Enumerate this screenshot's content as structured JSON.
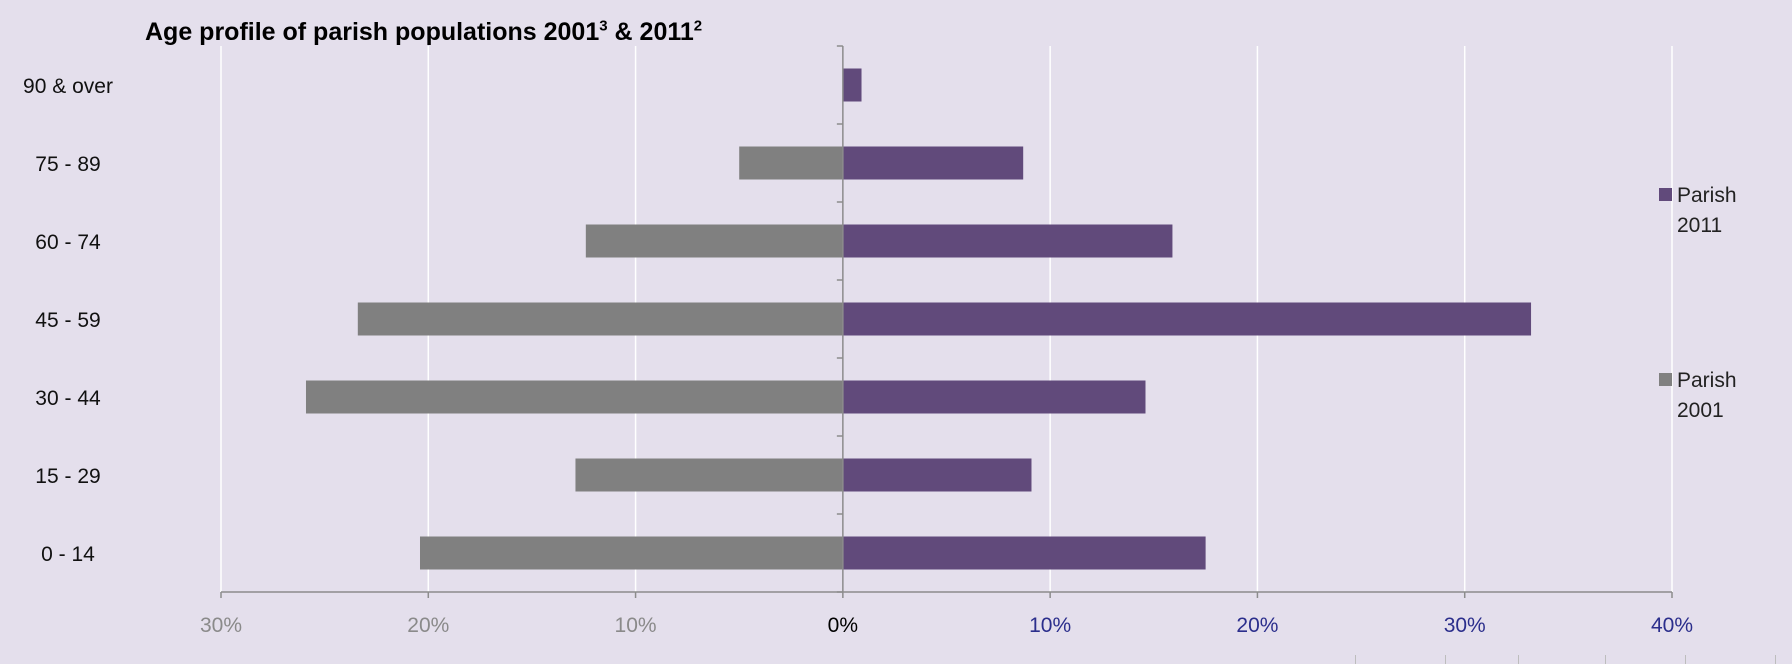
{
  "title": {
    "main": "Age profile of parish populations 2001",
    "sup1": "3",
    "mid": " & 2011",
    "sup2": "2"
  },
  "colors": {
    "background": "#e4dfec",
    "parish_2011": "#614a7b",
    "parish_2001": "#808080",
    "negative_tick_text": "#8a8a8a",
    "positive_tick_text": "#2b2e8c",
    "gridline": "#ffffff",
    "axis": "#8c8c8c"
  },
  "chart_data": {
    "type": "bar",
    "orientation": "horizontal",
    "layout": "population-pyramid",
    "title": "Age profile of parish populations 2001³ & 2011²",
    "categories": [
      "0 - 14",
      "15 - 29",
      "30 - 44",
      "45 - 59",
      "60 - 74",
      "75 - 89",
      "90 & over"
    ],
    "series": [
      {
        "name": "Parish 2011",
        "color": "#614a7b",
        "values": [
          17.5,
          9.1,
          14.6,
          33.2,
          15.9,
          8.7,
          0.9
        ]
      },
      {
        "name": "Parish 2001",
        "color": "#808080",
        "values": [
          -20.4,
          -12.9,
          -25.9,
          -23.4,
          -12.4,
          -5.0,
          0
        ]
      }
    ],
    "xlim": [
      -30,
      40
    ],
    "xticks": [
      "30%",
      "20%",
      "10%",
      "0%",
      "10%",
      "20%",
      "30%",
      "40%"
    ],
    "grid": true,
    "legend_position": "right"
  },
  "legend": [
    {
      "label": "Parish 2011",
      "color": "#614a7b"
    },
    {
      "label": "Parish 2001",
      "color": "#808080"
    }
  ]
}
